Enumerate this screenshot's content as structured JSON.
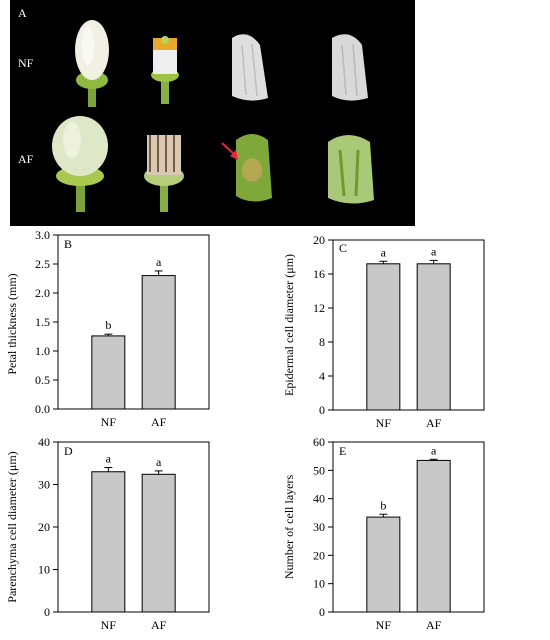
{
  "photo_panel": {
    "panel_letter": "A",
    "row_labels": [
      "NF",
      "AF"
    ]
  },
  "colors": {
    "bar_fill": "#c8c8c8",
    "bar_stroke": "#000000",
    "photo_background": "#000000",
    "arrow": "#e8283a"
  },
  "chart_data": [
    {
      "id": "B",
      "type": "bar",
      "panel_letter": "B",
      "categories": [
        "NF",
        "AF"
      ],
      "values": [
        1.26,
        2.3
      ],
      "errors": [
        0.03,
        0.08
      ],
      "significance": [
        "b",
        "a"
      ],
      "ylabel": "Petal thickness (mm)",
      "xlabel": "",
      "ylim": [
        0,
        3.0
      ],
      "yticks": [
        "0.0",
        "0.5",
        "1.0",
        "1.5",
        "2.0",
        "2.5",
        "3.0"
      ]
    },
    {
      "id": "C",
      "type": "bar",
      "panel_letter": "C",
      "categories": [
        "NF",
        "AF"
      ],
      "values": [
        17.2,
        17.2
      ],
      "errors": [
        0.3,
        0.4
      ],
      "significance": [
        "a",
        "a"
      ],
      "ylabel": "Epidermal cell diameter (μm)",
      "xlabel": "",
      "ylim": [
        0,
        20
      ],
      "yticks": [
        "0",
        "4",
        "8",
        "12",
        "16",
        "20"
      ]
    },
    {
      "id": "D",
      "type": "bar",
      "panel_letter": "D",
      "categories": [
        "NF",
        "AF"
      ],
      "values": [
        33.0,
        32.4
      ],
      "errors": [
        1.0,
        0.8
      ],
      "significance": [
        "a",
        "a"
      ],
      "ylabel": "Parenchyma cell diameter (μm)",
      "xlabel": "",
      "ylim": [
        0,
        40
      ],
      "yticks": [
        "0",
        "10",
        "20",
        "30",
        "40"
      ]
    },
    {
      "id": "E",
      "type": "bar",
      "panel_letter": "E",
      "categories": [
        "NF",
        "AF"
      ],
      "values": [
        33.5,
        53.5
      ],
      "errors": [
        1.0,
        0.4
      ],
      "significance": [
        "b",
        "a"
      ],
      "ylabel": "Number of cell layers",
      "xlabel": "",
      "ylim": [
        0,
        60
      ],
      "yticks": [
        "0",
        "10",
        "20",
        "30",
        "40",
        "50",
        "60"
      ]
    }
  ]
}
